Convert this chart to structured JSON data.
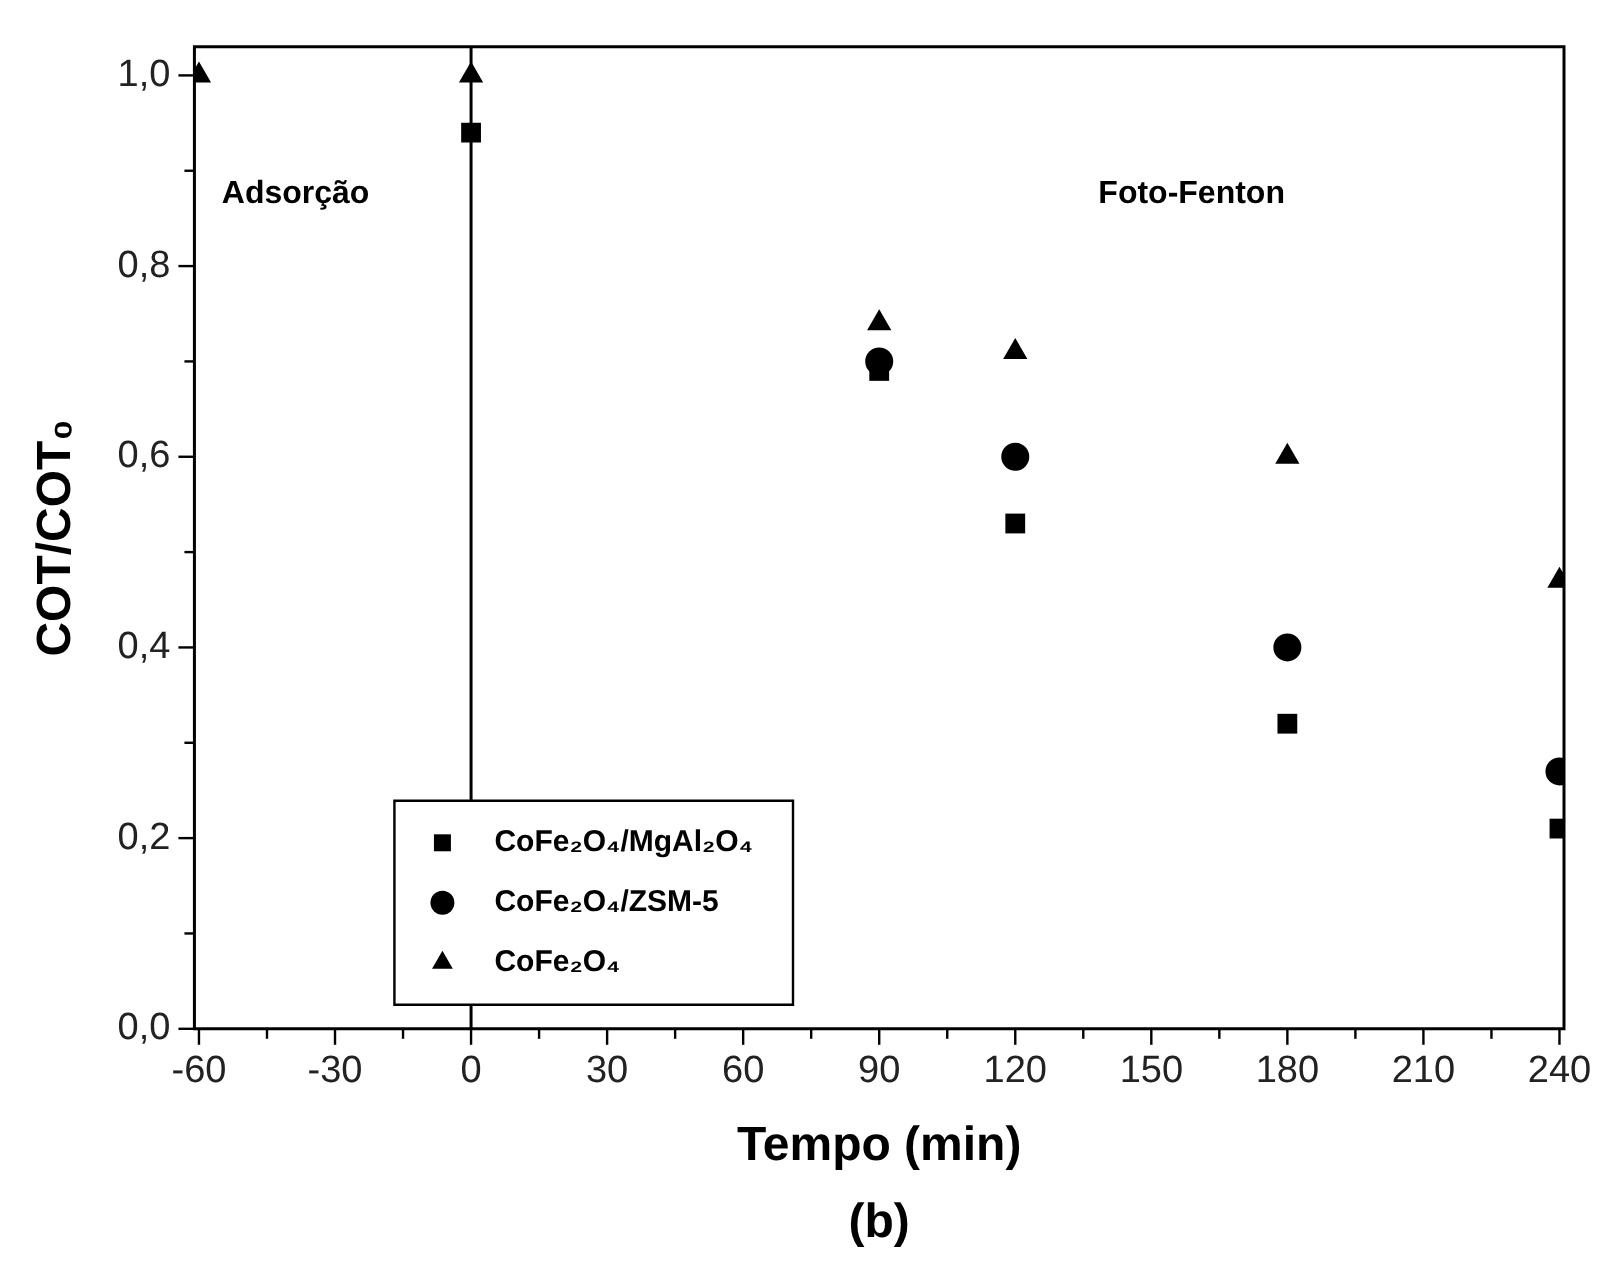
{
  "chart_data": {
    "type": "scatter",
    "xlabel": "Tempo (min)",
    "ylabel": "COT/COT₀",
    "x": [
      -60,
      0,
      90,
      120,
      180,
      240
    ],
    "series": [
      {
        "name": "CoFe₂O₄/MgAl₂O₄",
        "color": "#000000",
        "marker": "square",
        "values": [
          null,
          0.94,
          0.69,
          0.53,
          0.32,
          0.21
        ]
      },
      {
        "name": "CoFe₂O₄/ZSM-5",
        "color": "#000000",
        "marker": "circle",
        "values": [
          null,
          null,
          0.7,
          0.6,
          0.4,
          0.27
        ]
      },
      {
        "name": "CoFe₂O₄",
        "color": "#000000",
        "marker": "triangle",
        "values": [
          1.0,
          1.0,
          0.74,
          0.71,
          0.6,
          0.47
        ]
      }
    ],
    "xlim": [
      -61,
      241
    ],
    "ylim": [
      0,
      1.03
    ],
    "xticks": [
      -60,
      {
        "value": -45,
        "label": null
      },
      -30,
      {
        "value": -15,
        "label": null
      },
      0,
      {
        "value": 15,
        "label": null
      },
      30,
      {
        "value": 45,
        "label": null
      },
      60,
      {
        "value": 75,
        "label": null
      },
      90,
      {
        "value": 105,
        "label": null
      },
      120,
      {
        "value": 135,
        "label": null
      },
      150,
      {
        "value": 165,
        "label": null
      },
      180,
      {
        "value": 195,
        "label": null
      },
      210,
      {
        "value": 225,
        "label": null
      },
      240
    ],
    "yticks": [
      {
        "value": 0,
        "label": "0,0"
      },
      {
        "value": 0.1,
        "label": null
      },
      {
        "value": 0.2,
        "label": "0,2"
      },
      {
        "value": 0.3,
        "label": null
      },
      {
        "value": 0.4,
        "label": "0,4"
      },
      {
        "value": 0.5,
        "label": null
      },
      {
        "value": 0.6,
        "label": "0,6"
      },
      {
        "value": 0.7,
        "label": null
      },
      {
        "value": 0.8,
        "label": "0,8"
      },
      {
        "value": 0.9,
        "label": null
      },
      {
        "value": 1.0,
        "label": "1,0"
      }
    ],
    "ref_lines": [
      {
        "axis": "x",
        "value": 0,
        "color": "#000000"
      }
    ],
    "annotations": [
      "Adsorção",
      "Foto-Fenton",
      "(b)"
    ],
    "legend": "bottom left",
    "grid": false
  }
}
